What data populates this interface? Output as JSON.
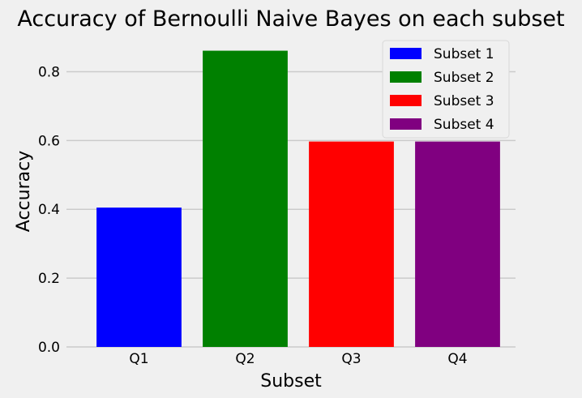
{
  "chart_data": {
    "type": "bar",
    "title": "Accuracy of Bernoulli Naive Bayes on each subset",
    "xlabel": "Subset",
    "ylabel": "Accuracy",
    "categories": [
      "Q1",
      "Q2",
      "Q3",
      "Q4"
    ],
    "values": [
      0.405,
      0.861,
      0.597,
      0.597
    ],
    "colors": [
      "#0000ff",
      "#008000",
      "#ff0000",
      "#800080"
    ],
    "legend": [
      "Subset 1",
      "Subset 2",
      "Subset 3",
      "Subset 4"
    ],
    "legend_position": "top-right",
    "ylim": [
      0,
      0.9
    ],
    "yticks": [
      0.0,
      0.2,
      0.4,
      0.6,
      0.8
    ],
    "ytick_labels": [
      "0.0",
      "0.2",
      "0.4",
      "0.6",
      "0.8"
    ],
    "grid": true,
    "style": "fivethirtyeight",
    "background_color": "#f0f0f0",
    "grid_color": "#cbcbcb"
  }
}
